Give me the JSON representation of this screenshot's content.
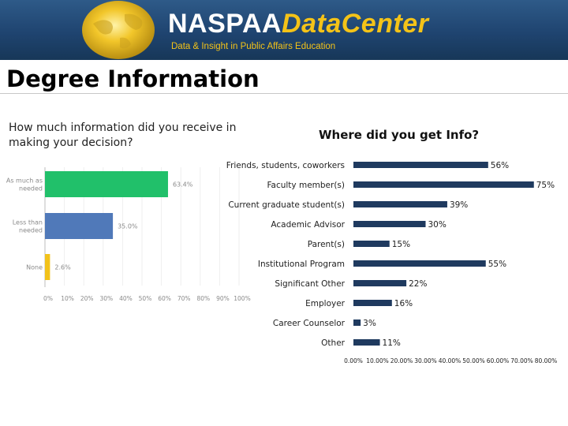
{
  "header": {
    "brand_part1": "NASPAA",
    "brand_part2": "DataCenter",
    "tagline": "Data & Insight in Public Affairs Education"
  },
  "page": {
    "title": "Degree Information"
  },
  "colors": {
    "banner": "#1f4470",
    "brand_yellow": "#f4c318",
    "bar_dark": "#1f3a5f",
    "green": "#21c06a",
    "blue": "#5079b9",
    "yellow": "#f2c21a"
  },
  "chart_data": [
    {
      "type": "bar",
      "orientation": "horizontal",
      "title": "How much information did you receive in making your decision?",
      "categories": [
        "As much as needed",
        "Less than needed",
        "None"
      ],
      "values": [
        63.4,
        35.0,
        2.6
      ],
      "value_labels": [
        "63.4%",
        "35.0%",
        "2.6%"
      ],
      "xlim": [
        0,
        100
      ],
      "xticks": [
        "0%",
        "10%",
        "20%",
        "30%",
        "40%",
        "50%",
        "60%",
        "70%",
        "80%",
        "90%",
        "100%"
      ],
      "colors": [
        "#21c06a",
        "#5079b9",
        "#f2c21a"
      ]
    },
    {
      "type": "bar",
      "orientation": "horizontal",
      "title": "Where did you get Info?",
      "categories": [
        "Friends, students, coworkers",
        "Faculty member(s)",
        "Current graduate student(s)",
        "Academic Advisor",
        "Parent(s)",
        "Institutional Program",
        "Significant Other",
        "Employer",
        "Career Counselor",
        "Other"
      ],
      "values": [
        56,
        75,
        39,
        30,
        15,
        55,
        22,
        16,
        3,
        11
      ],
      "value_labels": [
        "56%",
        "75%",
        "39%",
        "30%",
        "15%",
        "55%",
        "22%",
        "16%",
        "3%",
        "11%"
      ],
      "xlim": [
        0,
        80
      ],
      "xticks": [
        "0.00%",
        "10.00%",
        "20.00%",
        "30.00%",
        "40.00%",
        "50.00%",
        "60.00%",
        "70.00%",
        "80.00%"
      ],
      "color": "#1f3a5f"
    }
  ]
}
